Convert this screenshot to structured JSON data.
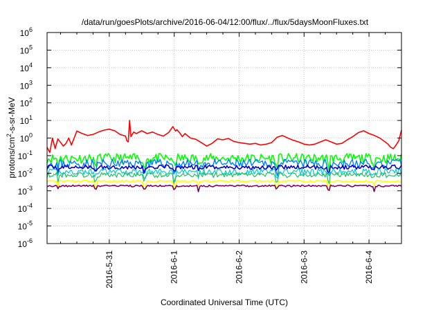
{
  "chart_data": {
    "type": "line",
    "title": "/data/run/goesPlots/archive/2016-06-04/12:00/flux/../flux/5daysMoonFluxes.txt",
    "xlabel": "Coordinated Universal Time (UTC)",
    "ylabel": "protons/cm²-s-sr-MeV",
    "yscale": "log",
    "ylim": [
      1e-06,
      1000000.0
    ],
    "xlim": [
      "2016-05-30T01:00",
      "2016-06-04T12:00"
    ],
    "grid": true,
    "x_ticks": [
      {
        "label": "2016-5-31",
        "time": "2016-05-31T00:00"
      },
      {
        "label": "2016-6-1",
        "time": "2016-06-01T00:00"
      },
      {
        "label": "2016-6-2",
        "time": "2016-06-02T00:00"
      },
      {
        "label": "2016-6-3",
        "time": "2016-06-03T00:00"
      },
      {
        "label": "2016-6-4",
        "time": "2016-06-04T00:00"
      }
    ],
    "y_ticks": [
      {
        "base": "10",
        "exp": "6",
        "value": 1000000.0
      },
      {
        "base": "10",
        "exp": "5",
        "value": 100000.0
      },
      {
        "base": "10",
        "exp": "4",
        "value": 10000.0
      },
      {
        "base": "10",
        "exp": "3",
        "value": 1000.0
      },
      {
        "base": "10",
        "exp": "2",
        "value": 100.0
      },
      {
        "base": "10",
        "exp": "1",
        "value": 10.0
      },
      {
        "base": "10",
        "exp": "0",
        "value": 1.0
      },
      {
        "base": "10",
        "exp": "-1",
        "value": 0.1
      },
      {
        "base": "10",
        "exp": "-2",
        "value": 0.01
      },
      {
        "base": "10",
        "exp": "-3",
        "value": 0.001
      },
      {
        "base": "10",
        "exp": "-4",
        "value": 0.0001
      },
      {
        "base": "10",
        "exp": "-5",
        "value": 1e-05
      },
      {
        "base": "10",
        "exp": "-6",
        "value": 1e-06
      }
    ],
    "series": [
      {
        "color": "#ff0000",
        "width": 1.6,
        "x": [
          "2016-05-30T01:00",
          "2016-05-30T02:00",
          "2016-05-30T03:00",
          "2016-05-30T04:00",
          "2016-05-30T05:00",
          "2016-05-30T07:00",
          "2016-05-30T08:00",
          "2016-05-30T09:00",
          "2016-05-30T10:00",
          "2016-05-30T12:00",
          "2016-05-30T14:00",
          "2016-05-30T16:00",
          "2016-05-30T18:00",
          "2016-05-30T20:00",
          "2016-05-30T22:00",
          "2016-05-31T00:00",
          "2016-05-31T02:00",
          "2016-05-31T04:00",
          "2016-05-31T06:00",
          "2016-05-31T06:30",
          "2016-05-31T07:00",
          "2016-05-31T07:30",
          "2016-05-31T08:00",
          "2016-05-31T09:00",
          "2016-05-31T10:00",
          "2016-05-31T12:00",
          "2016-05-31T14:00",
          "2016-05-31T16:00",
          "2016-05-31T18:00",
          "2016-05-31T20:00",
          "2016-05-31T22:00",
          "2016-05-31T23:30",
          "2016-06-01T00:30",
          "2016-06-01T01:00",
          "2016-06-01T02:00",
          "2016-06-01T03:00",
          "2016-06-01T04:00",
          "2016-06-01T06:00",
          "2016-06-01T08:00",
          "2016-06-01T10:00",
          "2016-06-01T12:00",
          "2016-06-01T14:00",
          "2016-06-01T16:00",
          "2016-06-01T18:00",
          "2016-06-01T20:00",
          "2016-06-01T22:00",
          "2016-06-02T00:00",
          "2016-06-02T02:00",
          "2016-06-02T04:00",
          "2016-06-02T06:00",
          "2016-06-02T08:00",
          "2016-06-02T10:00",
          "2016-06-02T12:00",
          "2016-06-02T14:00",
          "2016-06-02T16:00",
          "2016-06-02T18:00",
          "2016-06-02T20:00",
          "2016-06-02T22:00",
          "2016-06-03T00:00",
          "2016-06-03T02:00",
          "2016-06-03T04:00",
          "2016-06-03T06:00",
          "2016-06-03T08:00",
          "2016-06-03T10:00",
          "2016-06-03T12:00",
          "2016-06-03T14:00",
          "2016-06-03T16:00",
          "2016-06-03T18:00",
          "2016-06-03T20:00",
          "2016-06-03T22:00",
          "2016-06-04T00:00",
          "2016-06-04T02:00",
          "2016-06-04T04:00",
          "2016-06-04T06:00",
          "2016-06-04T07:00",
          "2016-06-04T08:00",
          "2016-06-04T09:00",
          "2016-06-04T10:00",
          "2016-06-04T11:00",
          "2016-06-04T12:00"
        ],
        "y": [
          0.3,
          0.15,
          1.0,
          0.25,
          0.9,
          0.35,
          0.5,
          1.0,
          0.4,
          2.5,
          1.8,
          1.4,
          1.6,
          2.2,
          2.8,
          3.2,
          2.6,
          1.6,
          1.3,
          0.7,
          0.6,
          10,
          1.2,
          2.2,
          1.8,
          2.6,
          1.8,
          2.2,
          1.6,
          1.3,
          2.1,
          4.5,
          2.5,
          3.0,
          2.0,
          1.2,
          1.8,
          1.0,
          0.85,
          0.55,
          0.35,
          0.5,
          0.9,
          0.8,
          0.95,
          0.65,
          0.55,
          0.5,
          0.45,
          0.5,
          0.4,
          0.45,
          0.55,
          1.1,
          1.4,
          1.0,
          0.75,
          0.6,
          0.45,
          0.4,
          0.45,
          0.6,
          0.8,
          0.6,
          0.45,
          0.5,
          0.8,
          1.2,
          2.0,
          2.6,
          1.8,
          1.4,
          1.0,
          0.6,
          0.45,
          0.3,
          0.25,
          0.4,
          0.7,
          2.8
        ]
      },
      {
        "color": "#00ff00",
        "width": 1.6,
        "level": 0.07,
        "amp": 0.55,
        "drop": 0.35,
        "seed": 11
      },
      {
        "color": "#0080ff",
        "width": 1.4,
        "level": 0.035,
        "amp": 0.5,
        "drop": 0.4,
        "seed": 23
      },
      {
        "color": "#0000cc",
        "width": 1.6,
        "level": 0.022,
        "amp": 0.25,
        "drop": 0.6,
        "seed": 37
      },
      {
        "color": "#00cccc",
        "width": 1.2,
        "level": 0.012,
        "amp": 0.35,
        "drop": 0.6,
        "seed": 41
      },
      {
        "color": "#20c060",
        "width": 1.2,
        "level": 0.008,
        "amp": 0.3,
        "drop": 0.6,
        "seed": 53
      },
      {
        "color": "#ffff00",
        "width": 1.6,
        "level": 0.0035,
        "amp": 0.12,
        "drop": 0.5,
        "seed": 67
      },
      {
        "color": "#800060",
        "width": 1.6,
        "level": 0.0019,
        "amp": 0.1,
        "drop": 0.6,
        "seed": 79
      }
    ],
    "dips": [
      "2016-05-30T05:00",
      "2016-05-30T19:00",
      "2016-05-31T13:00",
      "2016-06-01T00:00",
      "2016-06-01T09:00",
      "2016-06-02T14:00",
      "2016-06-03T09:00",
      "2016-06-04T02:00"
    ]
  }
}
